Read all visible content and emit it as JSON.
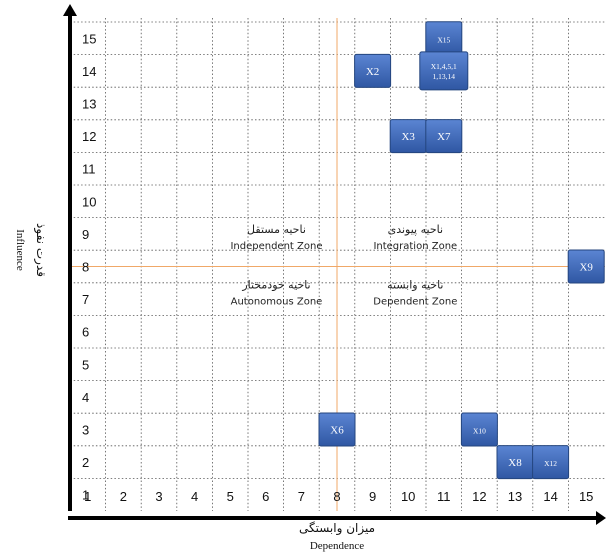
{
  "chart_data": {
    "type": "scatter",
    "title": "",
    "xlabel": "میزان  وابستگی",
    "xlabel_en": "Dependence",
    "ylabel": "قدرت نفوذ",
    "ylabel_en": "Influence",
    "xlim": [
      0.5,
      15.5
    ],
    "ylim": [
      0.5,
      15.5
    ],
    "x_ticks": [
      "1",
      "2",
      "3",
      "4",
      "5",
      "6",
      "7",
      "8",
      "9",
      "10",
      "11",
      "12",
      "13",
      "14",
      "15"
    ],
    "y_ticks": [
      "1",
      "2",
      "3",
      "4",
      "5",
      "6",
      "7",
      "8",
      "9",
      "10",
      "11",
      "12",
      "13",
      "14",
      "15"
    ],
    "grid": true,
    "divider": {
      "x": 8,
      "y": 8
    },
    "zones": [
      {
        "fa": "ناحیه مستقل",
        "en": "Independent Zone",
        "x": 6.3,
        "y": 9
      },
      {
        "fa": "ناحیه پیوندی",
        "en": "Integration Zone",
        "x": 10.2,
        "y": 9
      },
      {
        "fa": "ناحیه خودمختار",
        "en": "Autonomous Zone",
        "x": 6.3,
        "y": 7.3
      },
      {
        "fa": "ناحیه وابسته",
        "en": "Dependent Zone",
        "x": 10.2,
        "y": 7.3
      }
    ],
    "points": [
      {
        "label": "X15",
        "x": 11,
        "y": 15,
        "small": false
      },
      {
        "label": "X2",
        "x": 9,
        "y": 14,
        "small": false
      },
      {
        "label": "X1,4,5,1 1,13,14",
        "x": 11,
        "y": 14,
        "small": true
      },
      {
        "label": "X3",
        "x": 10,
        "y": 12,
        "small": false
      },
      {
        "label": "X7",
        "x": 11,
        "y": 12,
        "small": false
      },
      {
        "label": "X9",
        "x": 15,
        "y": 8,
        "small": false
      },
      {
        "label": "X6",
        "x": 8,
        "y": 3,
        "small": false
      },
      {
        "label": "X10",
        "x": 12,
        "y": 3,
        "small": false
      },
      {
        "label": "X8",
        "x": 13,
        "y": 2,
        "small": false
      },
      {
        "label": "X12",
        "x": 14,
        "y": 2,
        "small": false
      }
    ],
    "colors": {
      "box": "#3a66b8",
      "box_edge": "#24457e",
      "divider": "#f0a868",
      "grid": "#555555",
      "axis": "#000000"
    }
  }
}
